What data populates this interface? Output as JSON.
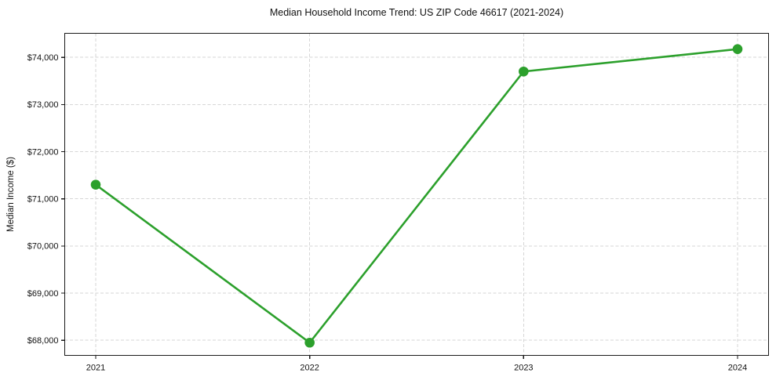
{
  "chart_data": {
    "type": "line",
    "title": "Median Household Income Trend: US ZIP Code 46617 (2021-2024)",
    "xlabel": "",
    "ylabel": "Median Income ($)",
    "categories": [
      "2021",
      "2022",
      "2023",
      "2024"
    ],
    "values": [
      71300,
      67950,
      73700,
      74175
    ],
    "ylim": [
      67680,
      74510
    ],
    "yticks": [
      {
        "value": 68000,
        "label": "$68,000"
      },
      {
        "value": 69000,
        "label": "$69,000"
      },
      {
        "value": 70000,
        "label": "$70,000"
      },
      {
        "value": 71000,
        "label": "$71,000"
      },
      {
        "value": 72000,
        "label": "$72,000"
      },
      {
        "value": 73000,
        "label": "$73,000"
      },
      {
        "value": 74000,
        "label": "$74,000"
      }
    ],
    "grid": true,
    "grid_line_style": "dashed",
    "legend": false,
    "colors": {
      "line": "#2ca02c",
      "marker": "#2ca02c",
      "grid": "#d6d6d6",
      "axis": "#1a1a1a",
      "text": "#111111",
      "background": "#ffffff"
    }
  }
}
